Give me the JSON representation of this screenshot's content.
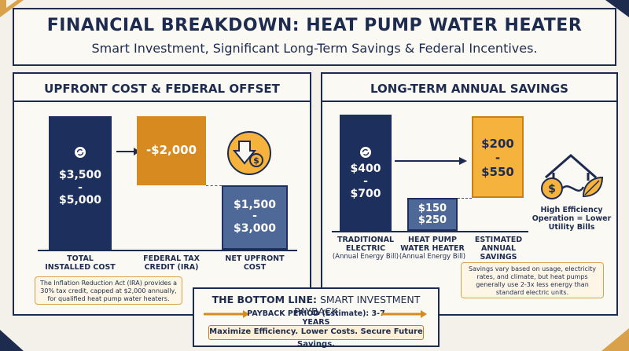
{
  "header": {
    "title": "FINANCIAL BREAKDOWN: HEAT PUMP WATER HEATER",
    "subtitle": "Smart Investment, Significant Long-Term Savings & Federal Incentives."
  },
  "left_panel": {
    "title": "UPFRONT COST & FEDERAL OFFSET",
    "total_cost": {
      "line1": "$3,500",
      "dash": "-",
      "line2": "$5,000",
      "label1": "TOTAL",
      "label2": "INSTALLED COST"
    },
    "tax_credit": {
      "value": "-$2,000",
      "label1": "FEDERAL TAX",
      "label2": "CREDIT (IRA)"
    },
    "net_cost": {
      "line1": "$1,500",
      "dash": "-",
      "line2": "$3,000",
      "label1": "NET UPFRONT",
      "label2": "COST"
    },
    "note": "The Inflation Reduction Act (IRA) provides a 30% tax credit, capped at $2,000 annually, for qualified heat pump water heaters."
  },
  "right_panel": {
    "title": "LONG-TERM ANNUAL SAVINGS",
    "electric": {
      "line1": "$400",
      "dash": "-",
      "line2": "$700",
      "label1": "TRADITIONAL",
      "label2": "ELECTRIC",
      "label3": "(Annual Energy Bill)"
    },
    "heat_pump": {
      "line1": "$150",
      "dash": "-",
      "line2": "$250",
      "label1": "HEAT PUMP",
      "label2": "WATER HEATER",
      "label3": "(Annual Energy Bill)"
    },
    "savings": {
      "line1": "$200",
      "dash": "-",
      "line2": "$550",
      "label1": "ESTIMATED",
      "label2": "ANNUAL",
      "label3": "SAVINGS"
    },
    "efficiency_caption1": "High Efficiency",
    "efficiency_caption2": "Operation = Lower",
    "efficiency_caption3": "Utility Bills",
    "note": "Savings vary based on usage, electricity rates, and climate, but heat pumps generally use 2-3x less energy than standard electric units."
  },
  "bottom_line": {
    "title_bold": "THE BOTTOM LINE:",
    "title_rest": " SMART INVESTMENT PAYBACK",
    "payback": "PAYBACK PERIOD (Estimate): 3-7 YEARS",
    "slogan": "Maximize Efficiency. Lower Costs. Secure Future Savings."
  },
  "colors": {
    "navy": "#1d2f5c",
    "amber": "#d68a1f",
    "slate": "#4e6898",
    "gold": "#f5b23c",
    "background": "#f4f1ea"
  },
  "icons": [
    "refresh-icon",
    "arrow-right-icon",
    "down-arrow-dollar-icon",
    "house-dollar-leaf-icon"
  ]
}
